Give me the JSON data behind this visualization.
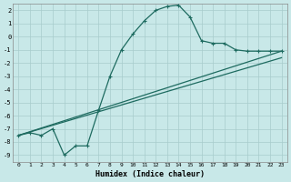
{
  "xlabel": "Humidex (Indice chaleur)",
  "bg_color": "#c8e8e8",
  "line_color": "#1e6b60",
  "grid_color": "#a8cccc",
  "ylim": [
    -9.5,
    2.5
  ],
  "xlim": [
    -0.5,
    23.5
  ],
  "yticks": [
    2,
    1,
    0,
    -1,
    -2,
    -3,
    -4,
    -5,
    -6,
    -7,
    -8,
    -9
  ],
  "xticks": [
    0,
    1,
    2,
    3,
    4,
    5,
    6,
    7,
    8,
    9,
    10,
    11,
    12,
    13,
    14,
    15,
    16,
    17,
    18,
    19,
    20,
    21,
    22,
    23
  ],
  "curve_x": [
    0,
    1,
    2,
    3,
    4,
    5,
    6,
    7,
    8,
    9,
    10,
    11,
    12,
    13,
    14,
    15,
    16,
    17,
    18,
    19,
    20,
    21,
    22,
    23
  ],
  "curve_y": [
    -7.5,
    -7.3,
    -7.5,
    -7.0,
    -9.0,
    -8.3,
    -8.3,
    -5.6,
    -3.0,
    -1.0,
    0.2,
    1.2,
    2.0,
    2.3,
    2.4,
    1.5,
    -0.3,
    -0.5,
    -0.5,
    -1.0,
    -1.1,
    -1.1,
    -1.1,
    -1.1
  ],
  "trend1_x": [
    0,
    23
  ],
  "trend1_y": [
    -7.5,
    -1.1
  ],
  "trend2_x": [
    0,
    23
  ],
  "trend2_y": [
    -7.5,
    -1.6
  ]
}
